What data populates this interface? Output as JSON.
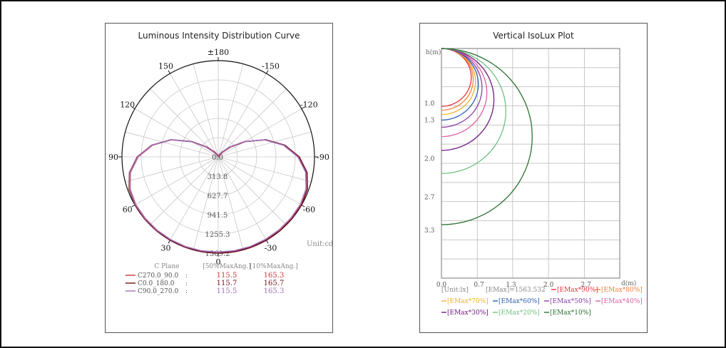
{
  "chart_data": [
    {
      "type": "polar",
      "title": "Luminous Intensity Distribution Curve",
      "unit_label": "Unit:cd",
      "angle_labels": [
        "±180",
        "150",
        "120",
        "90",
        "60",
        "30",
        "0",
        "-30",
        "-60",
        "-90",
        "-120",
        "-150"
      ],
      "radial_labels": [
        "0.0",
        "313.8",
        "627.7",
        "941.5",
        "1255.3",
        "1569.2"
      ],
      "radial_max": 1569.2,
      "legend": {
        "headers": [
          "C Plane",
          "[50%MaxAng.]",
          "[10%MaxAng.]"
        ],
        "rows": [
          {
            "name": "C270.0_90.0",
            "sep": ":",
            "v50": "115.5",
            "v10": "165.3",
            "color": "#d9343a"
          },
          {
            "name": "C0.0_180.0",
            "sep": ":",
            "v50": "115.7",
            "v10": "165.7",
            "color": "#7a1020"
          },
          {
            "name": "C90.0_270.0",
            "sep": ":",
            "v50": "115.5",
            "v10": "165.3",
            "color": "#a070b8"
          }
        ]
      },
      "curve": {
        "angles_deg": [
          180,
          165,
          150,
          140,
          130,
          120,
          110,
          100,
          90,
          80,
          70,
          60,
          50,
          40,
          30,
          20,
          10,
          0
        ],
        "intensity_cd": [
          0,
          10,
          40,
          100,
          250,
          500,
          820,
          1100,
          1320,
          1470,
          1545,
          1568,
          1569,
          1569,
          1569,
          1569,
          1569,
          1569
        ]
      }
    },
    {
      "type": "line",
      "title": "Vertical IsoLux Plot",
      "xlabel": "d(m)",
      "ylabel": "h(m)",
      "x_ticks": [
        "0.0",
        "0.7",
        "1.3",
        "2.0",
        "2.7"
      ],
      "y_ticks": [
        "1.0",
        "1.3",
        "2.0",
        "2.7",
        "3.3"
      ],
      "xlim": [
        0,
        3.33
      ],
      "ylim": [
        0,
        4.17
      ],
      "unit_label": "[Unit:lx]",
      "emax_label": "[EMax]=1563.532",
      "series": [
        {
          "name": "[EMax*90%]",
          "depth": 1.05,
          "color": "#e8333a"
        },
        {
          "name": "[EMax*80%]",
          "depth": 1.12,
          "color": "#f08040"
        },
        {
          "name": "[EMax*70%]",
          "depth": 1.2,
          "color": "#f0b030"
        },
        {
          "name": "[EMax*60%]",
          "depth": 1.3,
          "color": "#3060b0"
        },
        {
          "name": "[EMax*50%]",
          "depth": 1.43,
          "color": "#8a40a8"
        },
        {
          "name": "[EMax*40%]",
          "depth": 1.6,
          "color": "#e060a0"
        },
        {
          "name": "[EMax*30%]",
          "depth": 1.85,
          "color": "#701a80"
        },
        {
          "name": "[EMax*20%]",
          "depth": 2.27,
          "color": "#6fc080"
        },
        {
          "name": "[EMax*10%]",
          "depth": 3.2,
          "color": "#2a7030"
        }
      ]
    }
  ]
}
